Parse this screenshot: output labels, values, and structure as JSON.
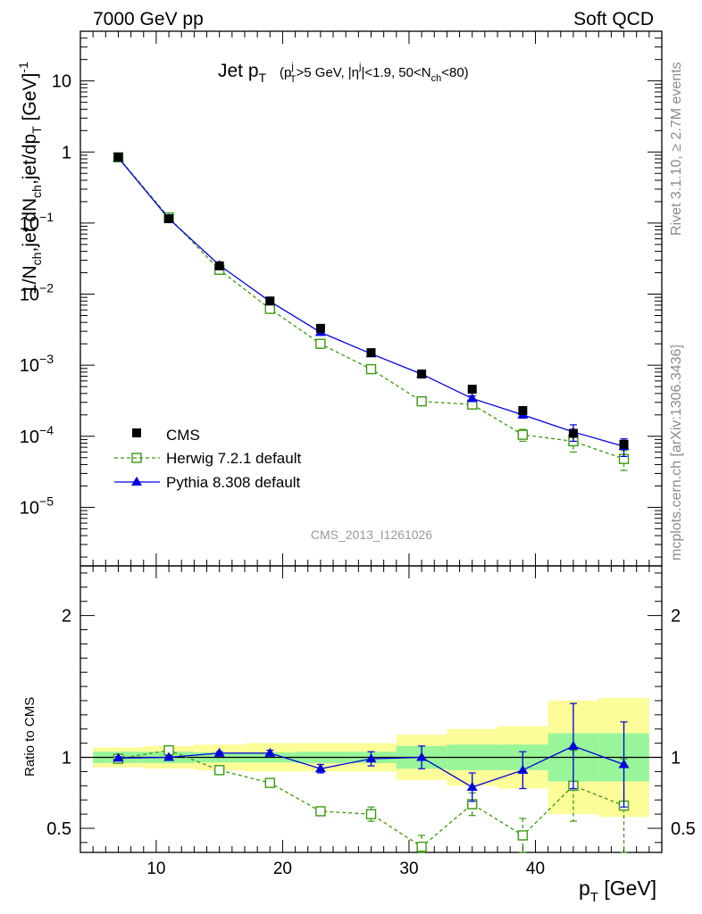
{
  "header": {
    "left": "7000 GeV pp",
    "right": "Soft QCD"
  },
  "plot_title": {
    "main": "Jet p",
    "main_sub": "T",
    "detail": "(p_T^j>5 GeV, |η^j|<1.9, 50<N_ch<80)"
  },
  "side_labels": {
    "rivet": "Rivet 3.1.10, ≥ 2.7M events",
    "mcplots": "mcplots.cern.ch [arXiv:1306.3436]"
  },
  "watermark": "CMS_2013_I1261026",
  "legend": {
    "cms": "CMS",
    "herwig": "Herwig 7.2.1 default",
    "pythia": "Pythia 8.308 default"
  },
  "colors": {
    "data": "#000000",
    "herwig": "#3a9a10",
    "pythia": "#0000dd",
    "band_inner": "#99f599",
    "band_outer": "#fcfc99"
  },
  "chart_data": [
    {
      "type": "scatter",
      "panel": "main",
      "ylabel": "1/N_ch,jet dN_ch,jet/dp_T [GeV]^-1",
      "xlabel": "p_T [GeV]",
      "yscale": "log",
      "xlim": [
        4,
        50
      ],
      "ylim": [
        1.5e-06,
        50
      ],
      "x": [
        7,
        11,
        15,
        19,
        23,
        27,
        31,
        35,
        39,
        43,
        47
      ],
      "x_tick_labels": [
        "10",
        "20",
        "30",
        "40"
      ],
      "series": [
        {
          "name": "CMS",
          "marker": "square",
          "values": [
            0.85,
            0.115,
            0.025,
            0.008,
            0.0033,
            0.0015,
            0.00075,
            0.00046,
            0.00023,
            0.00011,
            7.7e-05
          ],
          "errors": [
            0.03,
            0.004,
            0.0008,
            0.0003,
            0.00015,
            7e-05,
            4e-05,
            3e-05,
            2e-05,
            2e-05,
            1e-05
          ]
        },
        {
          "name": "Herwig 7.2.1 default",
          "marker": "open-square",
          "line": "dashed",
          "values": [
            0.84,
            0.12,
            0.022,
            0.0062,
            0.002,
            0.00088,
            0.00031,
            0.00028,
            0.000105,
            8.5e-05,
            4.8e-05
          ],
          "errors": [
            0.005,
            0.002,
            0.0004,
            0.0001,
            6e-05,
            4e-05,
            2e-05,
            3e-05,
            2e-05,
            2.5e-05,
            1.5e-05
          ]
        },
        {
          "name": "Pythia 8.308 default",
          "marker": "triangle",
          "line": "solid",
          "values": [
            0.83,
            0.115,
            0.0255,
            0.0079,
            0.0029,
            0.00145,
            0.00075,
            0.00034,
            0.0002,
            0.000115,
            7.2e-05
          ],
          "errors": [
            0.005,
            0.002,
            0.0004,
            0.0001,
            6e-05,
            5e-05,
            4e-05,
            3e-05,
            2e-05,
            3e-05,
            2e-05
          ]
        }
      ]
    },
    {
      "type": "scatter",
      "panel": "ratio",
      "ylabel": "Ratio to CMS",
      "xlabel": "p_T [GeV]",
      "xlim": [
        4,
        50
      ],
      "ylim": [
        0.33,
        2.35
      ],
      "y_tick_labels": [
        "0.5",
        "1",
        "2"
      ],
      "x": [
        7,
        11,
        15,
        19,
        23,
        27,
        31,
        35,
        39,
        43,
        47
      ],
      "bands": {
        "edges": [
          5,
          9,
          13,
          17,
          21,
          25,
          29,
          33,
          37,
          41,
          45,
          49
        ],
        "inner": [
          [
            0.96,
            1.04
          ],
          [
            0.96,
            1.04
          ],
          [
            0.965,
            1.035
          ],
          [
            0.965,
            1.035
          ],
          [
            0.96,
            1.04
          ],
          [
            0.96,
            1.04
          ],
          [
            0.92,
            1.08
          ],
          [
            0.91,
            1.09
          ],
          [
            0.91,
            1.09
          ],
          [
            0.83,
            1.17
          ],
          [
            0.83,
            1.17
          ]
        ],
        "outer": [
          [
            0.93,
            1.07
          ],
          [
            0.92,
            1.08
          ],
          [
            0.91,
            1.09
          ],
          [
            0.9,
            1.1
          ],
          [
            0.9,
            1.1
          ],
          [
            0.9,
            1.1
          ],
          [
            0.84,
            1.16
          ],
          [
            0.8,
            1.2
          ],
          [
            0.78,
            1.22
          ],
          [
            0.6,
            1.4
          ],
          [
            0.58,
            1.42
          ]
        ]
      },
      "series": [
        {
          "name": "Herwig 7.2.1 default",
          "values": [
            0.99,
            1.05,
            0.91,
            0.82,
            0.62,
            0.6,
            0.37,
            0.67,
            0.45,
            0.8,
            0.66
          ],
          "errors": [
            0.01,
            0.01,
            0.01,
            0.015,
            0.03,
            0.05,
            0.08,
            0.08,
            0.12,
            0.25,
            0.33
          ]
        },
        {
          "name": "Pythia 8.308 default",
          "values": [
            0.995,
            1.0,
            1.03,
            1.03,
            0.92,
            0.99,
            1.0,
            0.79,
            0.91,
            1.08,
            0.95
          ],
          "errors": [
            0.01,
            0.01,
            0.01,
            0.02,
            0.03,
            0.05,
            0.08,
            0.1,
            0.13,
            0.3,
            0.3
          ]
        }
      ]
    }
  ]
}
